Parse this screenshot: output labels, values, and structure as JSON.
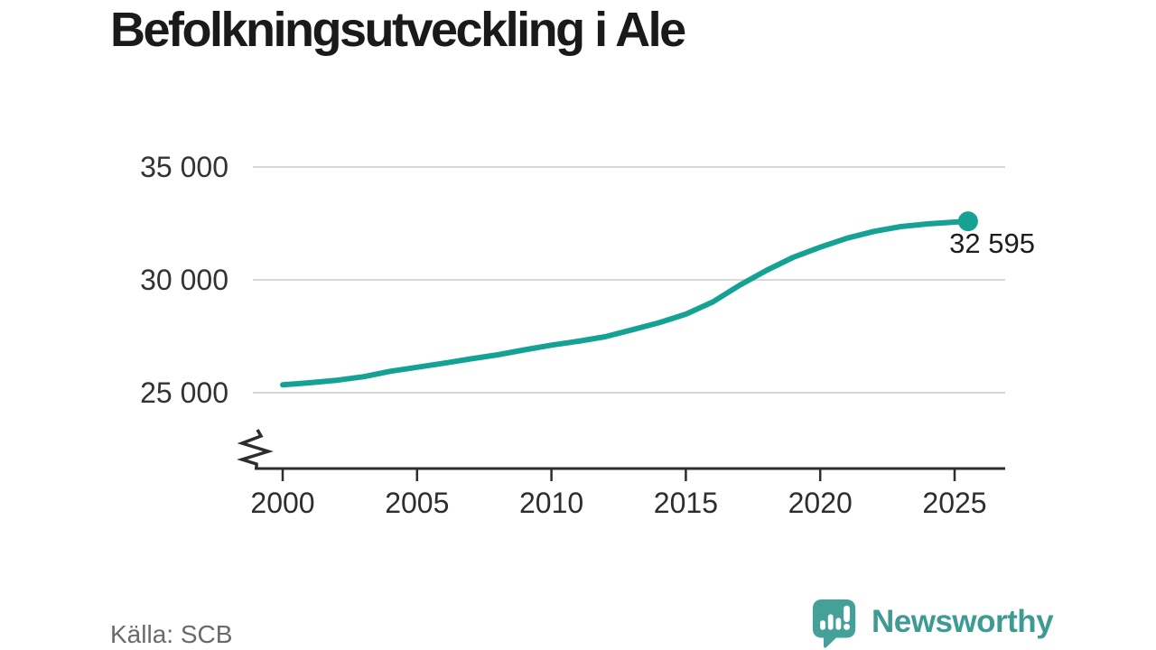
{
  "title": "Befolkningsutveckling i Ale",
  "source": "Källa: SCB",
  "annotation": {
    "end_label": "32 595"
  },
  "branding": {
    "name": "Newsworthy"
  },
  "colors": {
    "line": "#15a294",
    "grid": "#d8d8d8",
    "axis": "#2d2d2d",
    "tick_text": "#333333",
    "title_text": "#1a1a1a",
    "muted_text": "#6a6a6a",
    "brand": "#3d9b94",
    "brand_icon": "#45a09a"
  },
  "chart_data": {
    "type": "line",
    "title": "Befolkningsutveckling i Ale",
    "xlabel": "",
    "ylabel": "",
    "x": [
      2000,
      2001,
      2002,
      2003,
      2004,
      2005,
      2006,
      2007,
      2008,
      2009,
      2010,
      2011,
      2012,
      2013,
      2014,
      2015,
      2016,
      2017,
      2018,
      2019,
      2020,
      2021,
      2022,
      2023,
      2024,
      2025,
      2025.5
    ],
    "y": [
      25350,
      25440,
      25550,
      25710,
      25950,
      26130,
      26310,
      26500,
      26680,
      26900,
      27110,
      27280,
      27480,
      27790,
      28100,
      28480,
      29020,
      29760,
      30420,
      31000,
      31450,
      31850,
      32150,
      32360,
      32480,
      32560,
      32595
    ],
    "x_ticks": [
      2000,
      2005,
      2010,
      2015,
      2020,
      2025
    ],
    "x_tick_labels": [
      "2000",
      "2005",
      "2010",
      "2015",
      "2020",
      "2025"
    ],
    "y_ticks": [
      25000,
      30000,
      35000
    ],
    "y_tick_labels": [
      "25 000",
      "30 000",
      "35 000"
    ],
    "xlim": [
      2000,
      2027
    ],
    "ylim": [
      24600,
      35600
    ],
    "axis_break": true,
    "grid": "horizontal",
    "legend": "none",
    "end_point_label": "32 595",
    "end_value": 32595
  }
}
